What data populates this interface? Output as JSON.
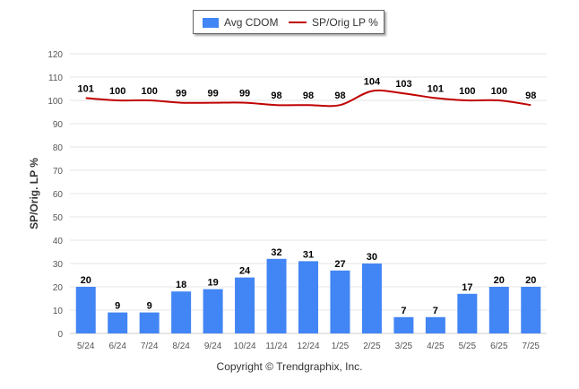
{
  "chart_data": {
    "type": "bar",
    "categories": [
      "5/24",
      "6/24",
      "7/24",
      "8/24",
      "9/24",
      "10/24",
      "11/24",
      "12/24",
      "1/25",
      "2/25",
      "3/25",
      "4/25",
      "5/25",
      "6/25",
      "7/25"
    ],
    "series": [
      {
        "name": "Avg CDOM",
        "type": "bar",
        "color": "#4285f4",
        "values": [
          20,
          9,
          9,
          18,
          19,
          24,
          32,
          31,
          27,
          30,
          7,
          7,
          17,
          20,
          20
        ]
      },
      {
        "name": "SP/Orig LP %",
        "type": "line",
        "color": "#c00000",
        "values": [
          101,
          100,
          100,
          99,
          99,
          99,
          98,
          98,
          98,
          104,
          103,
          101,
          100,
          100,
          98
        ]
      }
    ],
    "ylabel": "SP/Orig. LP %",
    "ylim": [
      0,
      120
    ],
    "yticks": [
      0,
      10,
      20,
      30,
      40,
      50,
      60,
      70,
      80,
      90,
      100,
      110,
      120
    ],
    "grid": true,
    "legend_position": "top"
  },
  "legend": {
    "bar_label": "Avg CDOM",
    "line_label": "SP/Orig LP %"
  },
  "footer": {
    "copyright": "Copyright © Trendgraphix, Inc."
  }
}
